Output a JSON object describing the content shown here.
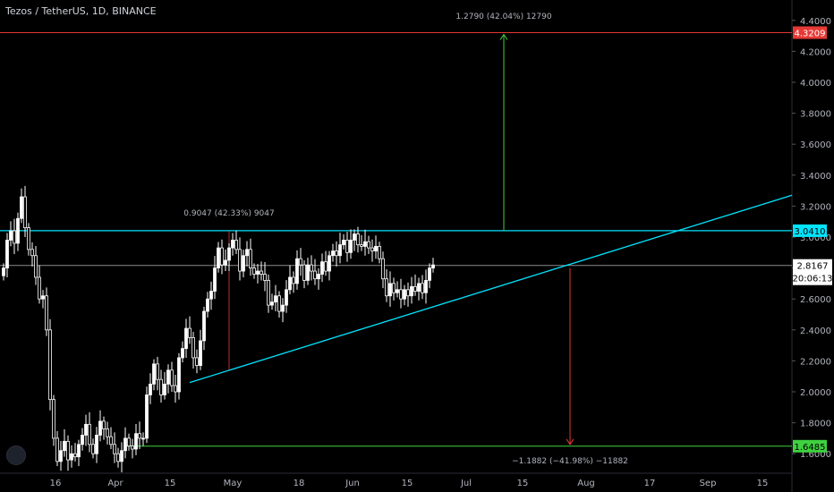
{
  "header": {
    "title": "Tezos / TetherUS, 1D, BINANCE"
  },
  "colors": {
    "background": "#000000",
    "axis_text": "#b2b5be",
    "candle": "#ffffff",
    "cyan_line": "#00e5ff",
    "red_line": "#e53935",
    "green_line": "#3fd13f",
    "grey_line": "#8a8a8a"
  },
  "icons": {
    "logo": "tradingview-logo"
  },
  "chart_data": {
    "type": "candlestick",
    "title": "Tezos / TetherUS, 1D, BINANCE",
    "x_ticks": [
      "16",
      "Apr",
      "15",
      "May",
      "18",
      "Jun",
      "15",
      "Jul",
      "15",
      "Aug",
      "17",
      "Sep",
      "15"
    ],
    "y_ticks": [
      "1.6000",
      "1.8000",
      "2.0000",
      "2.2000",
      "2.4000",
      "2.6000",
      "2.8000",
      "3.0000",
      "3.2000",
      "3.4000",
      "3.6000",
      "3.8000",
      "4.0000",
      "4.2000",
      "4.4000"
    ],
    "ylim": [
      1.56,
      4.5
    ],
    "current_price": "2.8167",
    "countdown": "20:06:13",
    "price_labels": [
      {
        "value": "4.3209",
        "color": "#e53935"
      },
      {
        "value": "3.0410",
        "color": "#00e5ff"
      },
      {
        "value": "1.6485",
        "color": "#3fd13f"
      }
    ],
    "annotations": {
      "target_up": "1.2790 (42.04%) 12790",
      "pattern_height": "0.9047 (42.33%) 9047",
      "target_down": "−1.1882 (−41.98%) −11882"
    },
    "levels": {
      "top": 4.3209,
      "resistance": 3.041,
      "bottom": 1.6485,
      "current": 2.8167
    },
    "support_line": {
      "from": [
        "Apr 19",
        2.06
      ],
      "to": [
        "Sep 20",
        3.27
      ]
    },
    "candles_close": [
      2.8,
      2.98,
      3.04,
      2.96,
      3.12,
      3.26,
      3.06,
      2.92,
      2.88,
      2.74,
      2.6,
      2.62,
      2.4,
      1.95,
      1.7,
      1.55,
      1.62,
      1.68,
      1.56,
      1.6,
      1.58,
      1.66,
      1.72,
      1.79,
      1.66,
      1.6,
      1.72,
      1.81,
      1.76,
      1.71,
      1.66,
      1.6,
      1.55,
      1.62,
      1.7,
      1.65,
      1.63,
      1.73,
      1.7,
      1.7,
      1.98,
      2.05,
      2.18,
      2.08,
      1.98,
      2.05,
      2.14,
      2.04,
      2.0,
      2.22,
      2.28,
      2.41,
      2.35,
      2.22,
      2.17,
      2.33,
      2.52,
      2.6,
      2.65,
      2.8,
      2.93,
      2.82,
      2.85,
      2.93,
      2.98,
      2.92,
      2.78,
      2.88,
      2.92,
      2.8,
      2.76,
      2.78,
      2.76,
      2.72,
      2.56,
      2.58,
      2.62,
      2.52,
      2.56,
      2.66,
      2.74,
      2.7,
      2.86,
      2.82,
      2.72,
      2.82,
      2.78,
      2.73,
      2.76,
      2.84,
      2.78,
      2.88,
      2.91,
      2.88,
      2.95,
      2.98,
      2.9,
      2.98,
      3.02,
      2.95,
      2.94,
      2.97,
      2.93,
      2.91,
      2.94,
      2.86,
      2.73,
      2.62,
      2.7,
      2.64,
      2.66,
      2.6,
      2.66,
      2.62,
      2.68,
      2.65,
      2.7,
      2.64,
      2.72,
      2.8,
      2.82
    ]
  }
}
